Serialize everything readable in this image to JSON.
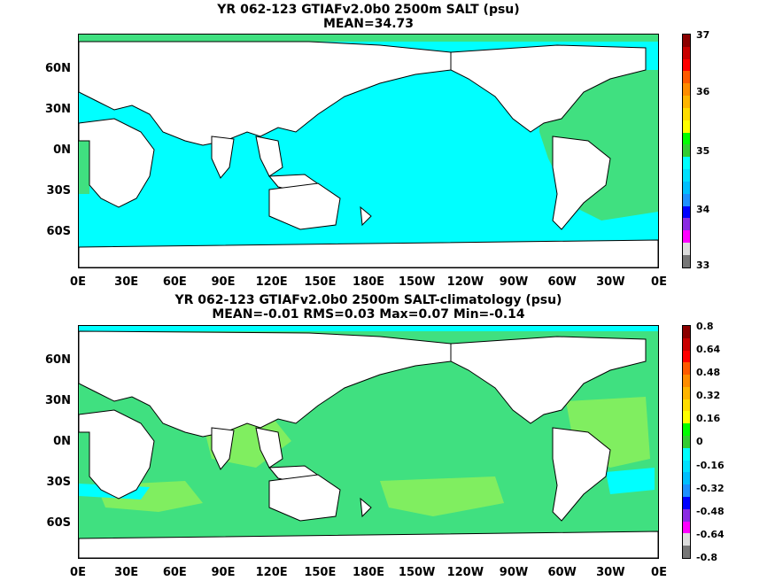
{
  "panel1": {
    "title_line1": "YR 062-123 GTIAFv2.0b0 2500m SALT (psu)",
    "title_line2": "MEAN=34.73",
    "lat_labels": [
      "60N",
      "30N",
      "0N",
      "30S",
      "60S"
    ],
    "lon_labels": [
      "0E",
      "30E",
      "60E",
      "90E",
      "120E",
      "150E",
      "180E",
      "150W",
      "120W",
      "90W",
      "60W",
      "30W",
      "0E"
    ],
    "colorbar": {
      "labels": [
        "37",
        "36",
        "35",
        "34",
        "33"
      ],
      "colors": [
        "#8b0000",
        "#c80000",
        "#ff0000",
        "#ff5a00",
        "#ff8c00",
        "#ffb400",
        "#ffdc00",
        "#ffff00",
        "#00ff00",
        "#32cd32",
        "#00ffff",
        "#00e0ff",
        "#00bfff",
        "#1e90ff",
        "#0000ff",
        "#8a2be2",
        "#ff00ff",
        "#dddddd",
        "#777777"
      ]
    }
  },
  "panel2": {
    "title_line1": "YR 062-123 GTIAFv2.0b0 2500m SALT-climatology (psu)",
    "title_line2": "MEAN=-0.01   RMS=0.03   Max=0.07   Min=-0.14",
    "lat_labels": [
      "60N",
      "30N",
      "0N",
      "30S",
      "60S"
    ],
    "lon_labels": [
      "0E",
      "30E",
      "60E",
      "90E",
      "120E",
      "150E",
      "180E",
      "150W",
      "120W",
      "90W",
      "60W",
      "30W",
      "0E"
    ],
    "colorbar": {
      "labels": [
        "0.8",
        "0.64",
        "0.48",
        "0.32",
        "0.16",
        "0",
        "-0.16",
        "-0.32",
        "-0.48",
        "-0.64",
        "-0.8"
      ],
      "colors": [
        "#8b0000",
        "#c80000",
        "#ff0000",
        "#ff5a00",
        "#ff8c00",
        "#ffb400",
        "#ffdc00",
        "#ffff00",
        "#00ff00",
        "#32cd32",
        "#00ffff",
        "#00e0ff",
        "#00bfff",
        "#1e90ff",
        "#0000ff",
        "#8a2be2",
        "#ff00ff",
        "#dddddd",
        "#777777"
      ]
    }
  },
  "map_colors": {
    "land": "#ffffff",
    "coast": "#000000",
    "panel1_ocean": "#00ffff",
    "panel1_atlantic": "#40e080",
    "panel2_ocean": "#40e080",
    "panel2_patch": "#80ee60",
    "panel2_cyan": "#00ffff"
  }
}
